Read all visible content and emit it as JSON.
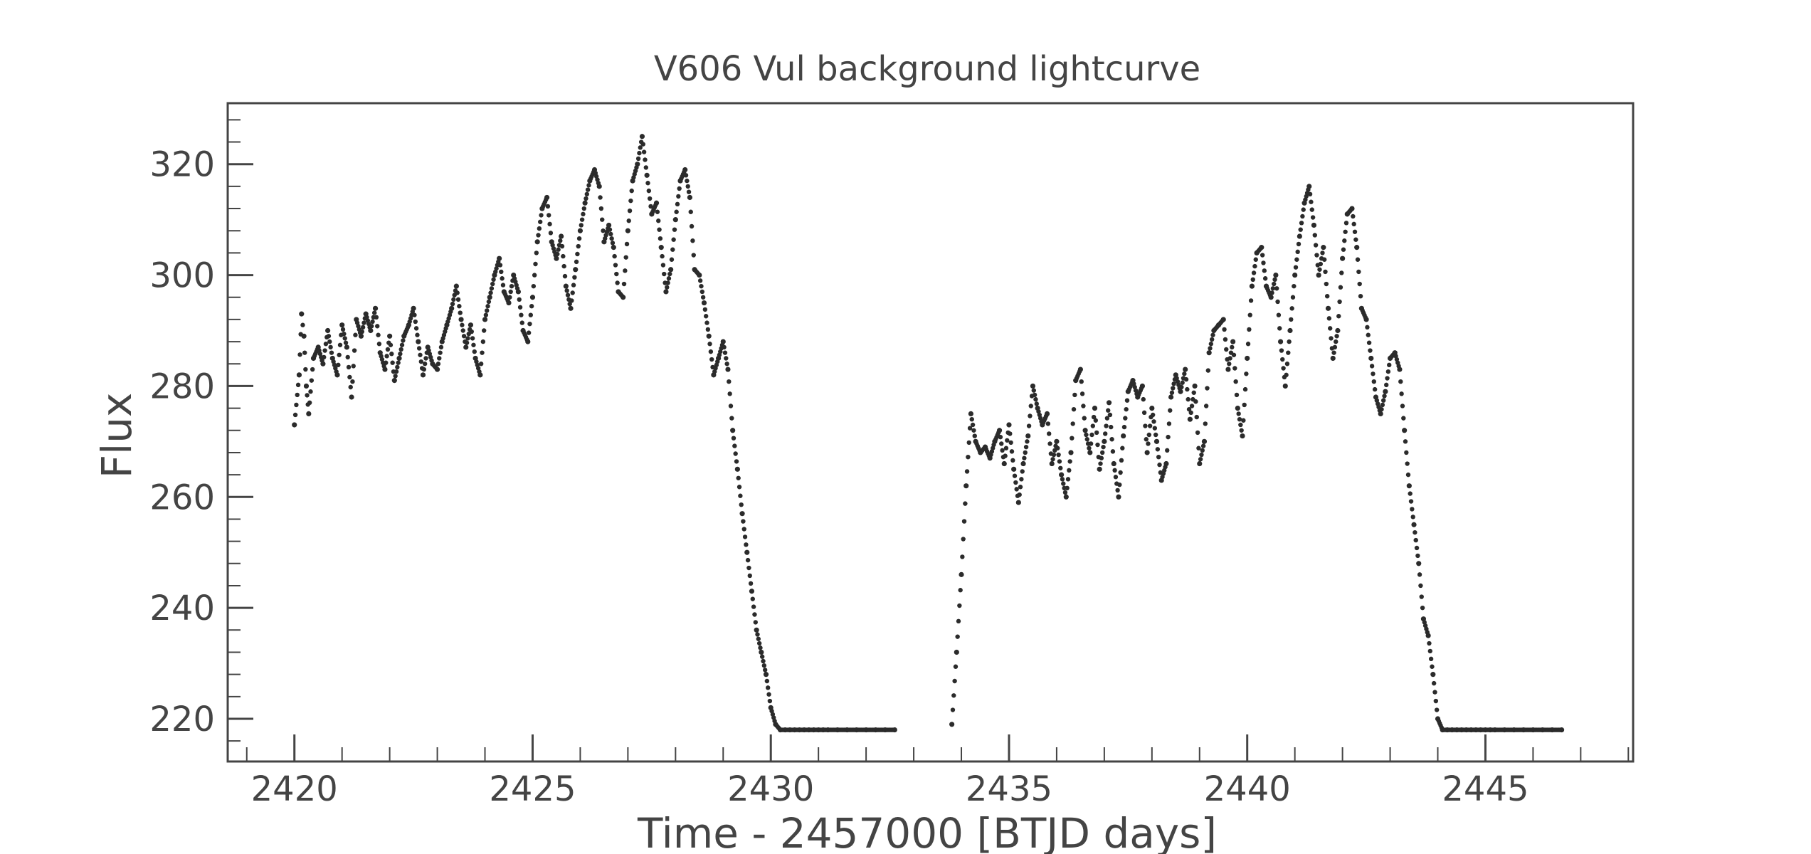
{
  "chart_data": {
    "type": "scatter",
    "title": "V606 Vul background lightcurve",
    "xlabel": "Time - 2457000 [BTJD days]",
    "ylabel": "Flux",
    "xlim": [
      2418.6,
      2448.1
    ],
    "ylim": [
      212.3,
      331.0
    ],
    "xticks": [
      2420,
      2425,
      2430,
      2435,
      2440,
      2445
    ],
    "yticks": [
      220,
      240,
      260,
      280,
      300,
      320
    ],
    "grid": false,
    "legend": "none",
    "marker_color": "#2b2b2b",
    "axis_color": "#444444",
    "series": [
      {
        "x": [
          2420.0,
          2420.1,
          2420.15,
          2420.2,
          2420.25,
          2420.3,
          2420.4,
          2420.5,
          2420.6,
          2420.7,
          2420.8,
          2420.9,
          2421.0,
          2421.1,
          2421.2,
          2421.3,
          2421.4,
          2421.5,
          2421.6,
          2421.7,
          2421.8,
          2421.9,
          2422.0,
          2422.1,
          2422.2,
          2422.3,
          2422.4,
          2422.5,
          2422.6,
          2422.7,
          2422.8,
          2422.9,
          2423.0,
          2423.1,
          2423.2,
          2423.3,
          2423.4,
          2423.5,
          2423.6,
          2423.7,
          2423.8,
          2423.9,
          2424.0,
          2424.1,
          2424.2,
          2424.3,
          2424.4,
          2424.5,
          2424.6,
          2424.7,
          2424.8,
          2424.9,
          2425.0,
          2425.1,
          2425.2,
          2425.3,
          2425.4,
          2425.5,
          2425.6,
          2425.7,
          2425.8,
          2425.9,
          2426.0,
          2426.1,
          2426.2,
          2426.3,
          2426.4,
          2426.5,
          2426.6,
          2426.7,
          2426.8,
          2426.9,
          2427.0,
          2427.1,
          2427.2,
          2427.3,
          2427.4,
          2427.5,
          2427.6,
          2427.7,
          2427.8,
          2427.9,
          2428.0,
          2428.1,
          2428.2,
          2428.3,
          2428.4,
          2428.5,
          2428.6,
          2428.7,
          2428.8,
          2428.9,
          2429.0,
          2429.1,
          2429.2,
          2429.3,
          2429.4,
          2429.5,
          2429.6,
          2429.7,
          2429.8,
          2429.9,
          2430.0,
          2430.1,
          2430.2,
          2430.3,
          2430.4,
          2430.5,
          2430.6,
          2430.7,
          2430.8,
          2430.9,
          2431.0,
          2431.1,
          2431.2,
          2431.4,
          2431.6,
          2431.8,
          2432.0,
          2432.2,
          2432.4,
          2432.6
        ],
        "y": [
          273,
          282,
          293,
          289,
          280,
          275,
          285,
          287,
          284,
          290,
          285,
          282,
          291,
          287,
          278,
          292,
          289,
          293,
          290,
          294,
          286,
          283,
          289,
          281,
          285,
          289,
          291,
          294,
          288,
          282,
          287,
          284,
          283,
          288,
          291,
          294,
          298,
          292,
          287,
          291,
          285,
          282,
          292,
          296,
          300,
          303,
          297,
          295,
          300,
          297,
          290,
          288,
          296,
          306,
          312,
          314,
          306,
          303,
          307,
          298,
          294,
          301,
          308,
          313,
          317,
          319,
          316,
          306,
          309,
          305,
          297,
          296,
          308,
          317,
          320,
          325,
          318,
          311,
          313,
          305,
          297,
          301,
          310,
          317,
          319,
          314,
          301,
          300,
          295,
          289,
          282,
          285,
          288,
          283,
          272,
          265,
          257,
          250,
          243,
          236,
          232,
          228,
          222,
          219,
          218,
          218,
          218,
          218,
          218,
          218,
          218,
          218,
          218,
          218,
          218,
          218,
          218,
          218,
          218,
          218,
          218,
          218
        ]
      },
      {
        "x": [
          2433.8,
          2433.9,
          2434.0,
          2434.1,
          2434.2,
          2434.3,
          2434.4,
          2434.5,
          2434.6,
          2434.7,
          2434.8,
          2434.9,
          2435.0,
          2435.1,
          2435.2,
          2435.3,
          2435.4,
          2435.5,
          2435.6,
          2435.7,
          2435.8,
          2435.9,
          2436.0,
          2436.1,
          2436.2,
          2436.3,
          2436.4,
          2436.5,
          2436.6,
          2436.7,
          2436.8,
          2436.9,
          2437.0,
          2437.1,
          2437.2,
          2437.3,
          2437.4,
          2437.5,
          2437.6,
          2437.7,
          2437.8,
          2437.9,
          2438.0,
          2438.1,
          2438.2,
          2438.3,
          2438.4,
          2438.5,
          2438.6,
          2438.7,
          2438.8,
          2438.9,
          2439.0,
          2439.1,
          2439.2,
          2439.3,
          2439.4,
          2439.5,
          2439.6,
          2439.7,
          2439.8,
          2439.9,
          2440.0,
          2440.1,
          2440.2,
          2440.3,
          2440.4,
          2440.5,
          2440.6,
          2440.7,
          2440.8,
          2440.9,
          2441.0,
          2441.1,
          2441.2,
          2441.3,
          2441.4,
          2441.5,
          2441.6,
          2441.7,
          2441.8,
          2441.9,
          2442.0,
          2442.1,
          2442.2,
          2442.3,
          2442.4,
          2442.5,
          2442.6,
          2442.7,
          2442.8,
          2442.9,
          2443.0,
          2443.1,
          2443.2,
          2443.3,
          2443.4,
          2443.5,
          2443.6,
          2443.7,
          2443.8,
          2443.9,
          2444.0,
          2444.1,
          2444.2,
          2444.3,
          2444.4,
          2444.5,
          2444.6,
          2444.7,
          2444.8,
          2444.9,
          2445.0,
          2445.1,
          2445.2,
          2445.4,
          2445.6,
          2445.8,
          2446.0,
          2446.2,
          2446.4,
          2446.6
        ],
        "y": [
          219,
          232,
          246,
          262,
          275,
          270,
          268,
          269,
          267,
          270,
          272,
          266,
          273,
          265,
          259,
          266,
          271,
          280,
          276,
          273,
          275,
          266,
          270,
          264,
          260,
          268,
          281,
          283,
          272,
          268,
          276,
          265,
          270,
          277,
          266,
          260,
          271,
          279,
          281,
          278,
          280,
          268,
          276,
          270,
          263,
          266,
          278,
          282,
          279,
          283,
          274,
          280,
          266,
          270,
          286,
          290,
          291,
          292,
          283,
          288,
          276,
          271,
          285,
          298,
          304,
          305,
          298,
          296,
          300,
          288,
          280,
          290,
          300,
          307,
          313,
          316,
          309,
          300,
          305,
          294,
          285,
          290,
          303,
          311,
          312,
          305,
          294,
          292,
          285,
          278,
          275,
          279,
          285,
          286,
          283,
          272,
          262,
          255,
          248,
          238,
          235,
          228,
          220,
          218,
          218,
          218,
          218,
          218,
          218,
          218,
          218,
          218,
          218,
          218,
          218,
          218,
          218,
          218,
          218,
          218,
          218,
          218
        ]
      }
    ]
  }
}
